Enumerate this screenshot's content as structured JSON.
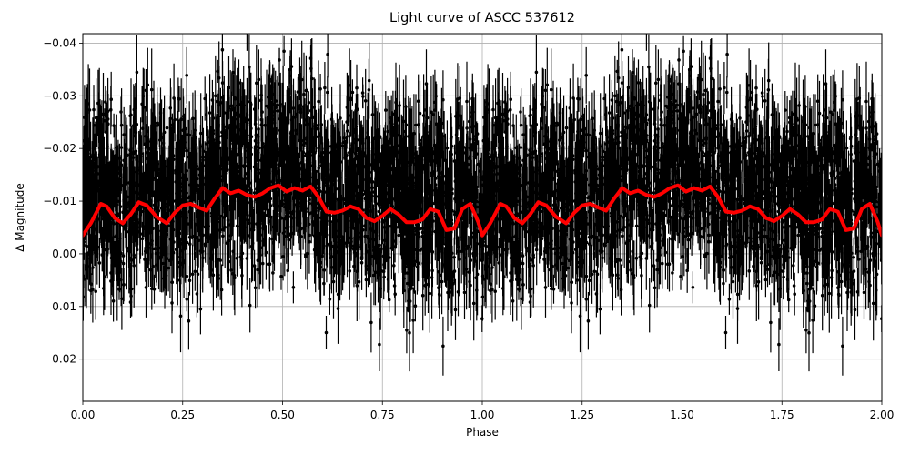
{
  "chart_data": {
    "type": "scatter",
    "title": "Light curve of ASCC 537612",
    "xlabel": "Phase",
    "ylabel": "Δ Magnitude",
    "xlim": [
      0.0,
      2.0
    ],
    "ylim": [
      0.028,
      -0.0418
    ],
    "y_inverted": true,
    "grid": true,
    "legend": null,
    "x_ticks": [
      0.0,
      0.25,
      0.5,
      0.75,
      1.0,
      1.25,
      1.5,
      1.75,
      2.0
    ],
    "x_tick_labels": [
      "0.00",
      "0.25",
      "0.50",
      "0.75",
      "1.00",
      "1.25",
      "1.50",
      "1.75",
      "2.00"
    ],
    "y_ticks": [
      -0.04,
      -0.03,
      -0.02,
      -0.01,
      0.0,
      0.01,
      0.02
    ],
    "y_tick_labels": [
      "−0.04",
      "−0.03",
      "−0.02",
      "−0.01",
      "0.00",
      "0.01",
      "0.02"
    ],
    "series": [
      {
        "name": "observations",
        "kind": "errorbar-scatter",
        "color": "#000000",
        "description": "Dense cloud of black points with vertical error bars, phase-folded and repeated over 0–2; bulk spread roughly −0.035 to +0.02 mag, outliers beyond axis limits",
        "approx_center": -0.012,
        "approx_spread": 0.012
      },
      {
        "name": "binned model",
        "kind": "line",
        "color": "#ff0000",
        "linewidth": 4,
        "x": [
          0.0,
          0.02,
          0.045,
          0.06,
          0.08,
          0.1,
          0.12,
          0.14,
          0.16,
          0.185,
          0.21,
          0.23,
          0.25,
          0.27,
          0.29,
          0.31,
          0.33,
          0.35,
          0.37,
          0.39,
          0.41,
          0.43,
          0.45,
          0.47,
          0.49,
          0.51,
          0.53,
          0.55,
          0.57,
          0.59,
          0.61,
          0.63,
          0.65,
          0.67,
          0.69,
          0.71,
          0.73,
          0.75,
          0.77,
          0.79,
          0.81,
          0.83,
          0.85,
          0.87,
          0.89,
          0.91,
          0.93,
          0.95,
          0.97,
          0.99,
          1.0
        ],
        "y": [
          -0.0035,
          -0.0058,
          -0.0095,
          -0.009,
          -0.0068,
          -0.0058,
          -0.0075,
          -0.0098,
          -0.0092,
          -0.007,
          -0.0058,
          -0.0078,
          -0.0092,
          -0.0095,
          -0.0088,
          -0.0082,
          -0.0105,
          -0.0125,
          -0.0115,
          -0.012,
          -0.0112,
          -0.0108,
          -0.0115,
          -0.0125,
          -0.013,
          -0.0118,
          -0.0125,
          -0.012,
          -0.0128,
          -0.0108,
          -0.008,
          -0.0078,
          -0.0082,
          -0.009,
          -0.0085,
          -0.0068,
          -0.0062,
          -0.0072,
          -0.0085,
          -0.0075,
          -0.006,
          -0.006,
          -0.0065,
          -0.0085,
          -0.008,
          -0.0045,
          -0.0048,
          -0.0085,
          -0.0095,
          -0.006,
          -0.0035
        ]
      }
    ],
    "colors": {
      "points": "#000000",
      "model": "#ff0000",
      "grid": "#b0b0b0",
      "axes": "#000000"
    }
  }
}
